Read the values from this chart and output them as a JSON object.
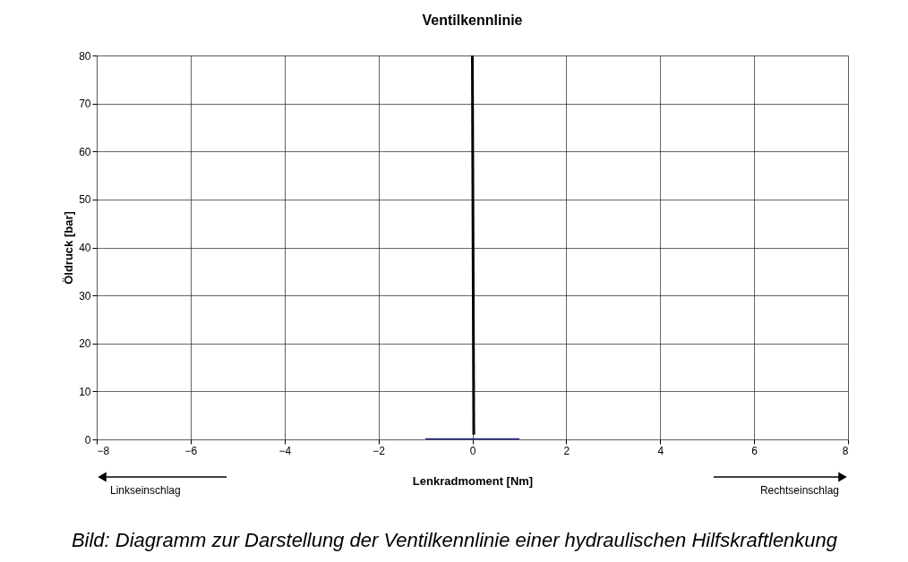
{
  "chart_data": {
    "type": "line",
    "title": "Ventilkennlinie",
    "xlabel": "Lenkradmoment [Nm]",
    "ylabel": "Öldruck [bar]",
    "series": [
      {
        "color": "#1a1a8c",
        "x": [
          -1,
          1
        ],
        "values": [
          0,
          0
        ]
      },
      {
        "color": "#000000",
        "x": [
          0.03,
          0.0
        ],
        "values": [
          1,
          80
        ]
      }
    ],
    "xlim": [
      -8,
      8
    ],
    "xticks": [
      -8,
      -6,
      -4,
      -2,
      0,
      2,
      4,
      6,
      8
    ],
    "ylim": [
      0,
      80
    ],
    "yticks": [
      0,
      10,
      20,
      30,
      40,
      50,
      60,
      70,
      80
    ],
    "grid": true,
    "marker": "none",
    "line_style": "solid",
    "annotations": [
      "Linkseinschlag",
      "Rechtseinschlag",
      "Bild: Diagramm zur Darstellung der Ventilkennlinie einer hydraulischen Hilfskraftlenkung"
    ]
  }
}
